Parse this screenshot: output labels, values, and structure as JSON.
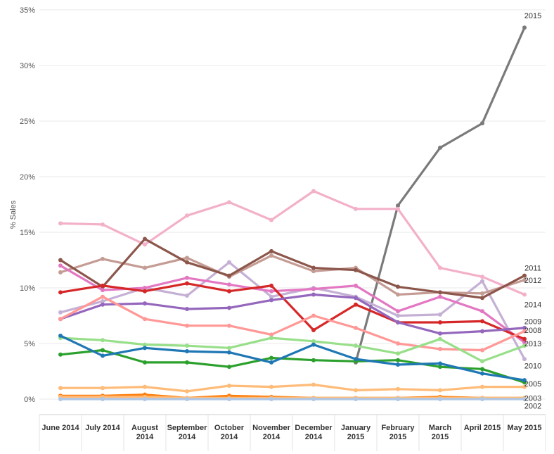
{
  "chart_data": {
    "type": "line",
    "ylabel": "% Sales",
    "ylim": [
      0,
      35
    ],
    "y_ticks": [
      "0%",
      "5%",
      "10%",
      "15%",
      "20%",
      "25%",
      "30%",
      "35%"
    ],
    "y_tick_values": [
      0,
      5,
      10,
      15,
      20,
      25,
      30,
      35
    ],
    "grid": "horizontal",
    "categories": [
      [
        "June 2014"
      ],
      [
        "July 2014"
      ],
      [
        "August",
        "2014"
      ],
      [
        "September",
        "2014"
      ],
      [
        "October",
        "2014"
      ],
      [
        "November",
        "2014"
      ],
      [
        "December",
        "2014"
      ],
      [
        "January",
        "2015"
      ],
      [
        "February",
        "2015"
      ],
      [
        "March",
        "2015"
      ],
      [
        "April 2015"
      ],
      [
        "May 2015"
      ]
    ],
    "series": [
      {
        "name": "2015",
        "color": "#7a7a7a",
        "values": [
          null,
          null,
          null,
          null,
          null,
          null,
          null,
          3.3,
          17.4,
          22.6,
          24.8,
          33.4
        ]
      },
      {
        "name": "2014",
        "color": "#f3b0c9",
        "values": [
          15.8,
          15.7,
          13.9,
          16.5,
          17.7,
          16.1,
          18.7,
          17.1,
          17.1,
          11.8,
          11.0,
          9.4
        ]
      },
      {
        "name": "2010",
        "color": "#c5b0d5",
        "values": [
          7.8,
          8.8,
          10.0,
          9.3,
          12.3,
          9.2,
          10.0,
          9.2,
          7.5,
          7.6,
          10.6,
          3.6
        ]
      },
      {
        "name": "2012",
        "color": "#c49c94",
        "values": [
          11.4,
          12.6,
          11.8,
          12.7,
          11.0,
          12.9,
          11.5,
          11.8,
          9.4,
          9.6,
          9.5,
          10.7
        ]
      },
      {
        "name": "2011",
        "color": "#8c564b",
        "values": [
          12.5,
          10.1,
          14.4,
          12.3,
          11.1,
          13.3,
          11.8,
          11.6,
          10.1,
          9.6,
          9.1,
          11.1
        ]
      },
      {
        "name": "",
        "color": "#e377c2",
        "values": [
          12.0,
          9.8,
          10.0,
          10.9,
          10.3,
          9.7,
          9.9,
          10.2,
          7.9,
          9.2,
          7.9,
          5.1
        ]
      },
      {
        "name": "",
        "color": "#d62728",
        "values": [
          9.6,
          10.2,
          9.7,
          10.4,
          9.7,
          10.2,
          6.2,
          8.5,
          6.9,
          6.9,
          7.0,
          5.4
        ]
      },
      {
        "name": "2008",
        "color": "#9467bd",
        "values": [
          7.2,
          8.5,
          8.6,
          8.1,
          8.2,
          8.9,
          9.4,
          9.1,
          6.9,
          5.9,
          6.1,
          6.4
        ]
      },
      {
        "name": "2013",
        "color": "#ff9896",
        "values": [
          7.2,
          9.2,
          7.2,
          6.6,
          6.6,
          5.8,
          7.5,
          6.4,
          5.0,
          4.5,
          4.4,
          6.1
        ]
      },
      {
        "name": "2009",
        "color": "#98df8a",
        "values": [
          5.5,
          5.3,
          4.9,
          4.8,
          4.6,
          5.5,
          5.2,
          4.8,
          4.1,
          5.4,
          3.4,
          4.8
        ]
      },
      {
        "name": "",
        "color": "#2ca02c",
        "values": [
          4.0,
          4.4,
          3.3,
          3.3,
          2.9,
          3.7,
          3.5,
          3.4,
          3.5,
          2.9,
          2.7,
          1.5
        ]
      },
      {
        "name": "2005",
        "color": "#1f77b4",
        "values": [
          5.7,
          3.9,
          4.6,
          4.3,
          4.2,
          3.3,
          4.9,
          3.6,
          3.1,
          3.2,
          2.3,
          1.7
        ]
      },
      {
        "name": "",
        "color": "#ffbb78",
        "values": [
          1.0,
          1.0,
          1.1,
          0.7,
          1.2,
          1.1,
          1.3,
          0.8,
          0.9,
          0.8,
          1.1,
          1.1
        ]
      },
      {
        "name": "",
        "color": "#ff7f0e",
        "values": [
          0.3,
          0.3,
          0.4,
          0.1,
          0.3,
          0.2,
          0.1,
          0.1,
          0.1,
          0.2,
          0.1,
          0.1
        ]
      },
      {
        "name": "2003",
        "color": "#ffbb78",
        "values": [
          0.2,
          0.2,
          0.2,
          0.1,
          0.1,
          0.1,
          0.1,
          0.1,
          0.1,
          0.1,
          0.1,
          0.1
        ]
      },
      {
        "name": "2002",
        "color": "#aec7e8",
        "values": [
          0.0,
          0.0,
          0.0,
          0.0,
          0.0,
          0.0,
          0.0,
          0.0,
          0.0,
          0.0,
          0.0,
          0.0
        ]
      }
    ],
    "end_labels": [
      {
        "text": "2015",
        "y": 34.5
      },
      {
        "text": "2011",
        "y": 11.8
      },
      {
        "text": "2012",
        "y": 10.7
      },
      {
        "text": "2014",
        "y": 8.5
      },
      {
        "text": "2009",
        "y": 7.0
      },
      {
        "text": "2008",
        "y": 6.2
      },
      {
        "text": "2013",
        "y": 5.0
      },
      {
        "text": "2010",
        "y": 3.0
      },
      {
        "text": "2005",
        "y": 1.4
      },
      {
        "text": "2003",
        "y": 0.1
      },
      {
        "text": "2002",
        "y": -0.6
      }
    ]
  }
}
